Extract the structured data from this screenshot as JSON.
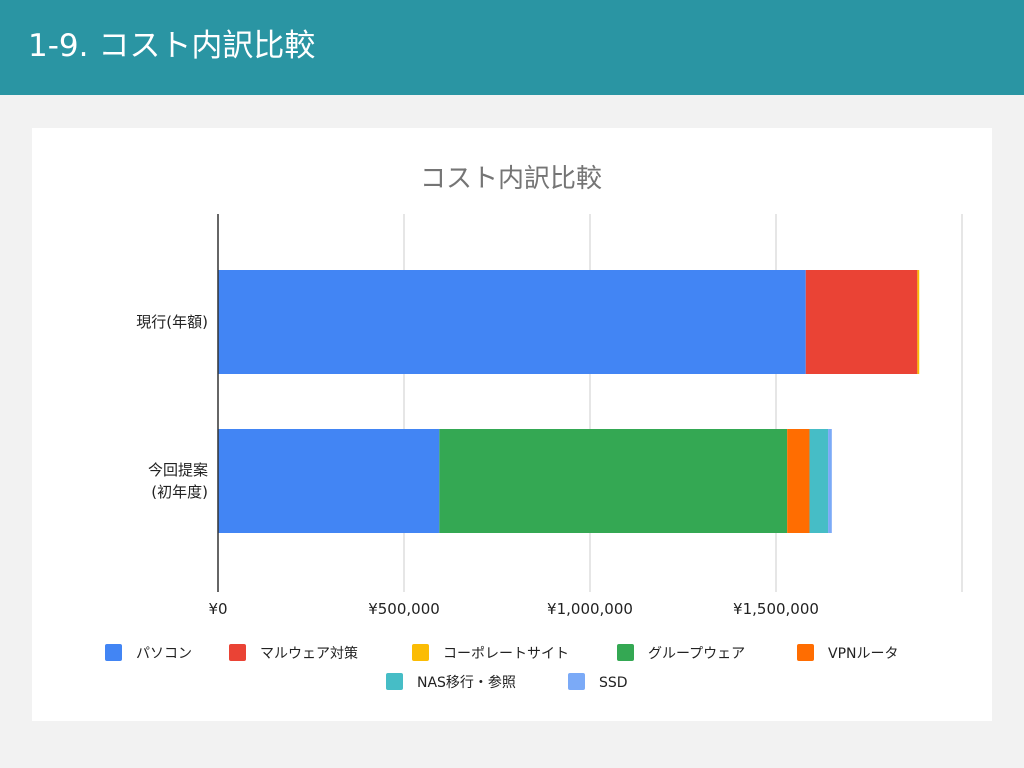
{
  "slide": {
    "title": "1-9. コスト内訳比較"
  },
  "colors": {
    "header_bg": "#2a95a3",
    "page_bg": "#f2f2f2",
    "card_bg": "#ffffff"
  },
  "chart_data": {
    "type": "bar",
    "orientation": "horizontal",
    "stacked": true,
    "title": "コスト内訳比較",
    "categories": [
      {
        "lines": [
          "現行(年額)"
        ]
      },
      {
        "lines": [
          "今回提案",
          "(初年度)"
        ]
      }
    ],
    "series": [
      {
        "name": "パソコン",
        "color": "#4285f4",
        "values": [
          1580000,
          595000
        ]
      },
      {
        "name": "マルウェア対策",
        "color": "#ea4335",
        "values": [
          300000,
          0
        ]
      },
      {
        "name": "コーポレートサイト",
        "color": "#fbbc04",
        "values": [
          5000,
          0
        ]
      },
      {
        "name": "グループウェア",
        "color": "#34a853",
        "values": [
          0,
          935000
        ]
      },
      {
        "name": "VPNルータ",
        "color": "#ff6d01",
        "values": [
          0,
          60000
        ]
      },
      {
        "name": "NAS移行・参照",
        "color": "#46bdc6",
        "values": [
          0,
          50000
        ]
      },
      {
        "name": "SSD",
        "color": "#7baaf7",
        "values": [
          0,
          10000
        ]
      }
    ],
    "x_ticks": [
      {
        "value": 0,
        "label": "¥0"
      },
      {
        "value": 500000,
        "label": "¥500,000"
      },
      {
        "value": 1000000,
        "label": "¥1,000,000"
      },
      {
        "value": 1500000,
        "label": "¥1,500,000"
      }
    ],
    "xlim": [
      0,
      2000000
    ],
    "grid": true,
    "legend_position": "bottom"
  }
}
